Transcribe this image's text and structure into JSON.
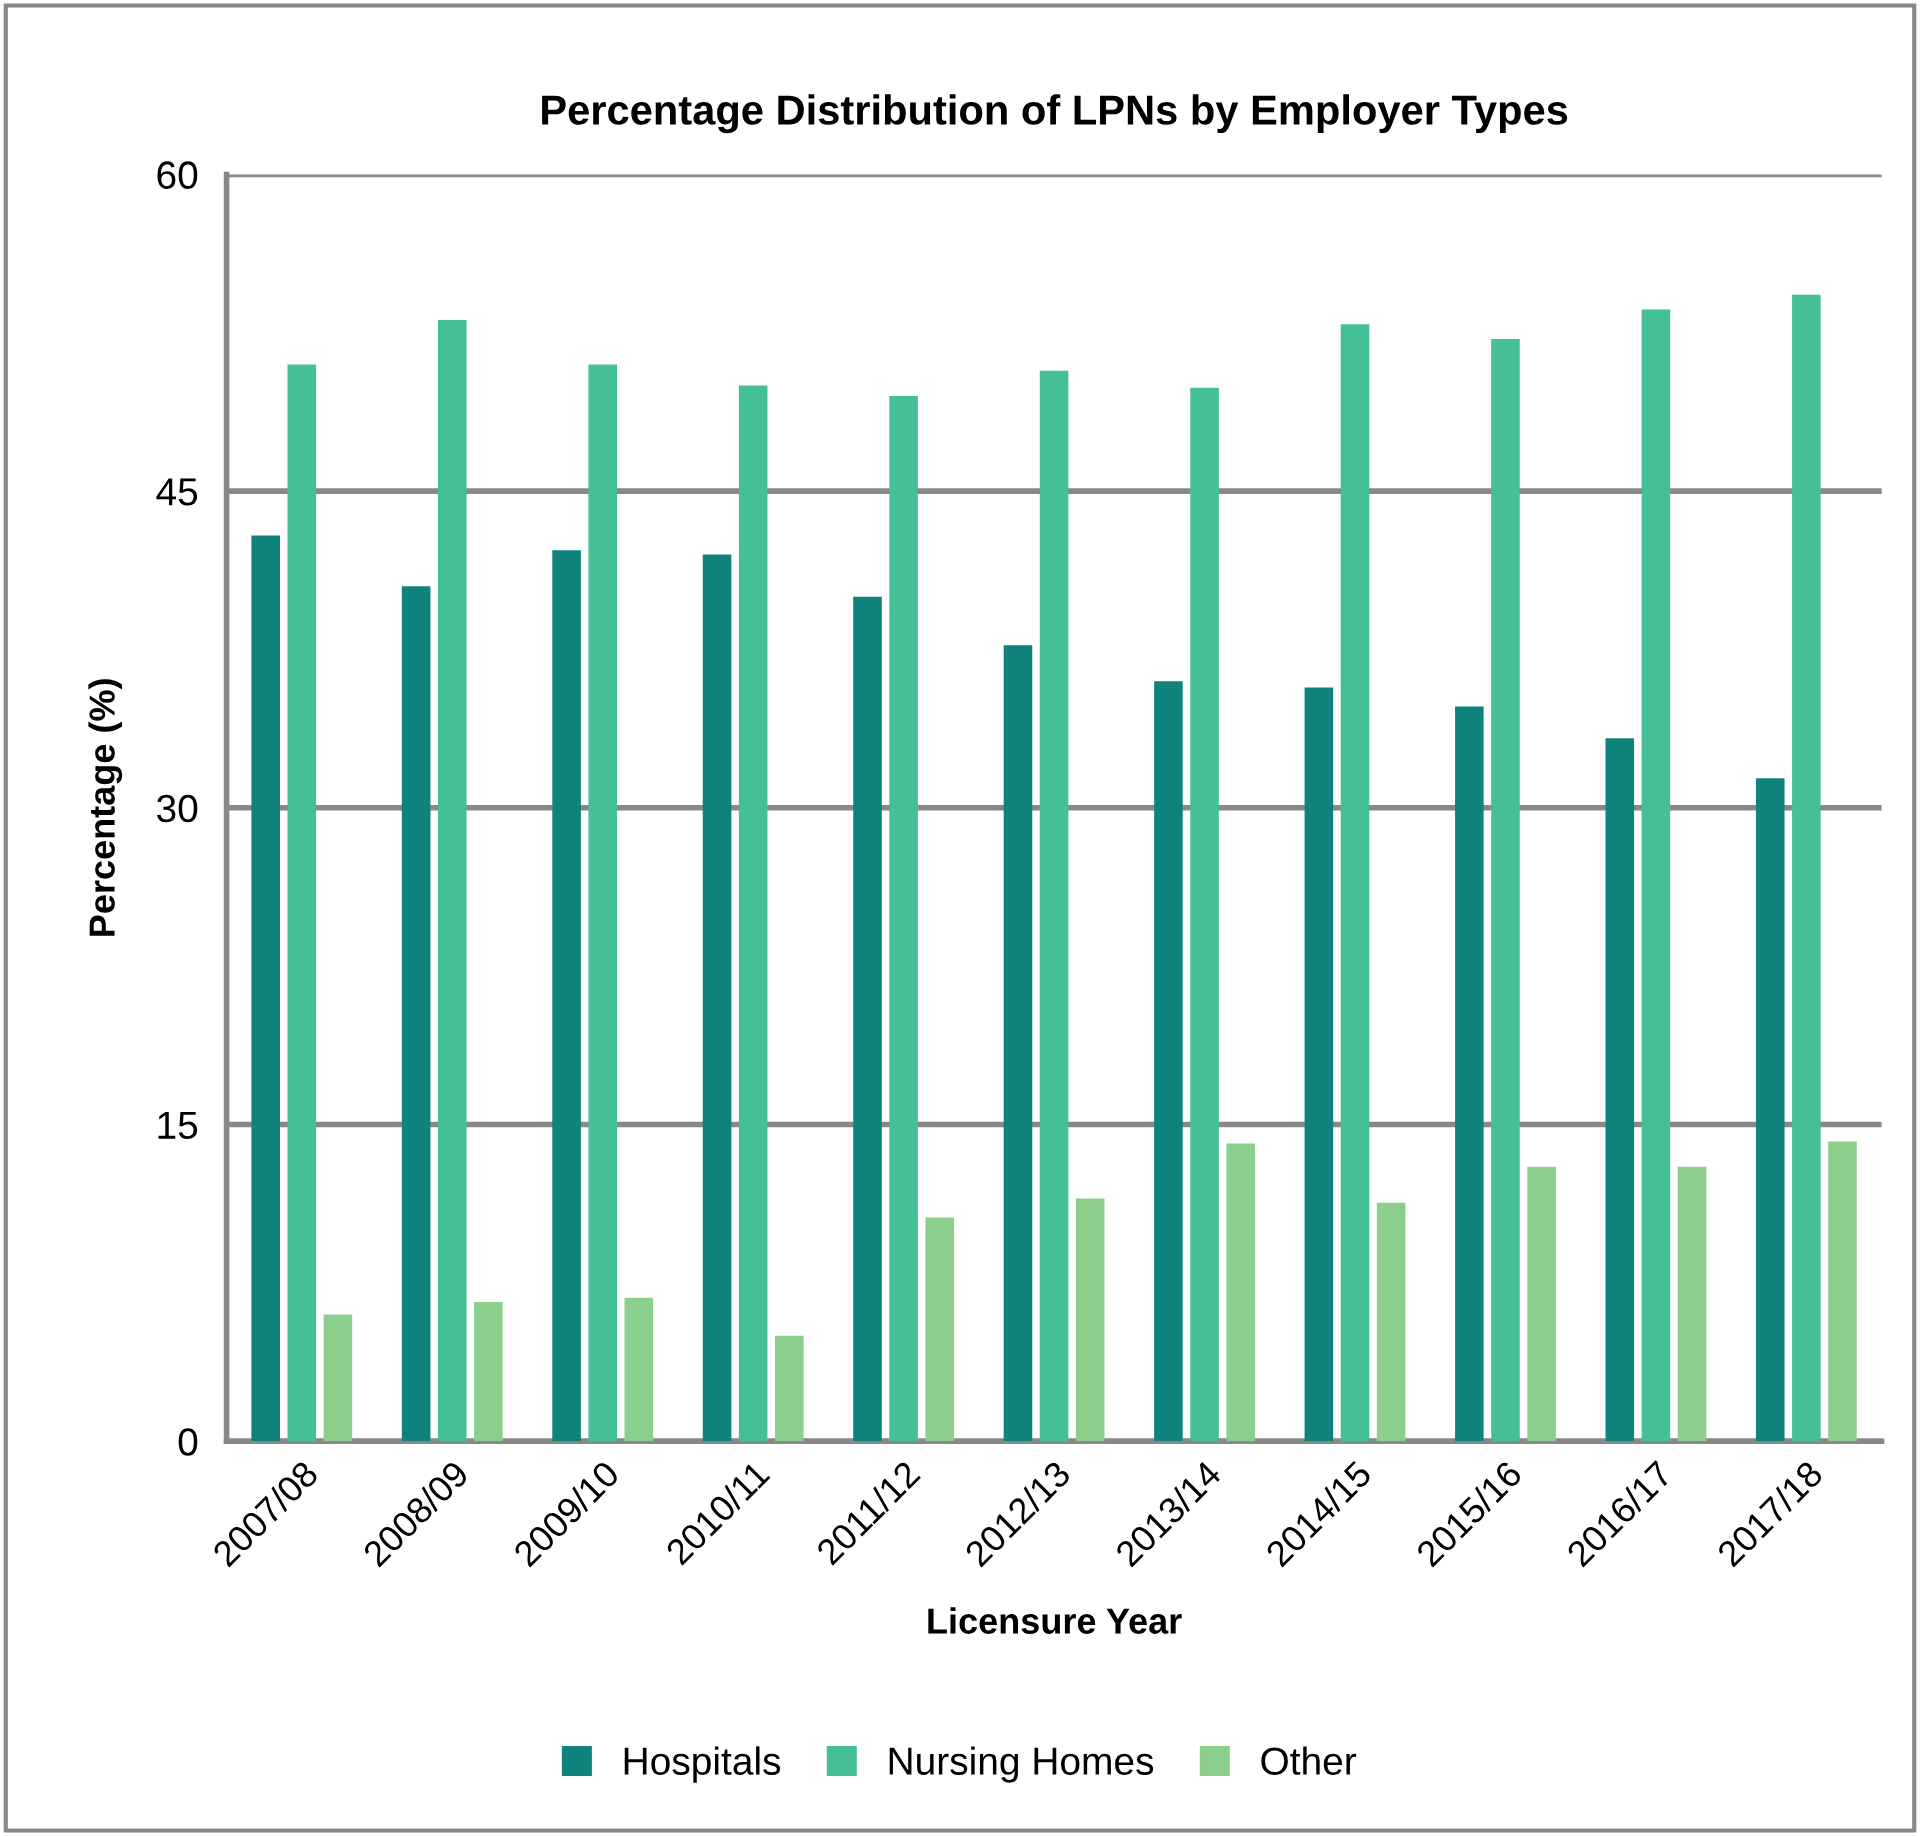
{
  "chart_data": {
    "type": "bar",
    "title": "Percentage Distribution of LPNs by Employer Types",
    "xlabel": "Licensure Year",
    "ylabel": "Percentage (%)",
    "categories": [
      "2007/08",
      "2008/09",
      "2009/10",
      "2010/11",
      "2011/12",
      "2012/13",
      "2013/14",
      "2014/15",
      "2015/16",
      "2016/17",
      "2017/18"
    ],
    "series": [
      {
        "name": "Hospitals",
        "color": "#0e827b",
        "values": [
          42.9,
          40.5,
          42.2,
          42.0,
          40.0,
          37.7,
          36.0,
          35.7,
          34.8,
          33.3,
          31.4
        ]
      },
      {
        "name": "Nursing Homes",
        "color": "#45bf96",
        "values": [
          51.0,
          53.1,
          51.0,
          50.0,
          49.5,
          50.7,
          49.9,
          52.9,
          52.2,
          53.6,
          54.3
        ]
      },
      {
        "name": "Other",
        "color": "#8ccf8c",
        "values": [
          6.0,
          6.6,
          6.8,
          5.0,
          10.6,
          11.5,
          14.1,
          11.3,
          13.0,
          13.0,
          14.2
        ]
      }
    ],
    "ylim": [
      0,
      60
    ],
    "yticks": [
      0,
      15,
      30,
      45,
      60
    ],
    "grid": "y",
    "legend": "bottom"
  }
}
